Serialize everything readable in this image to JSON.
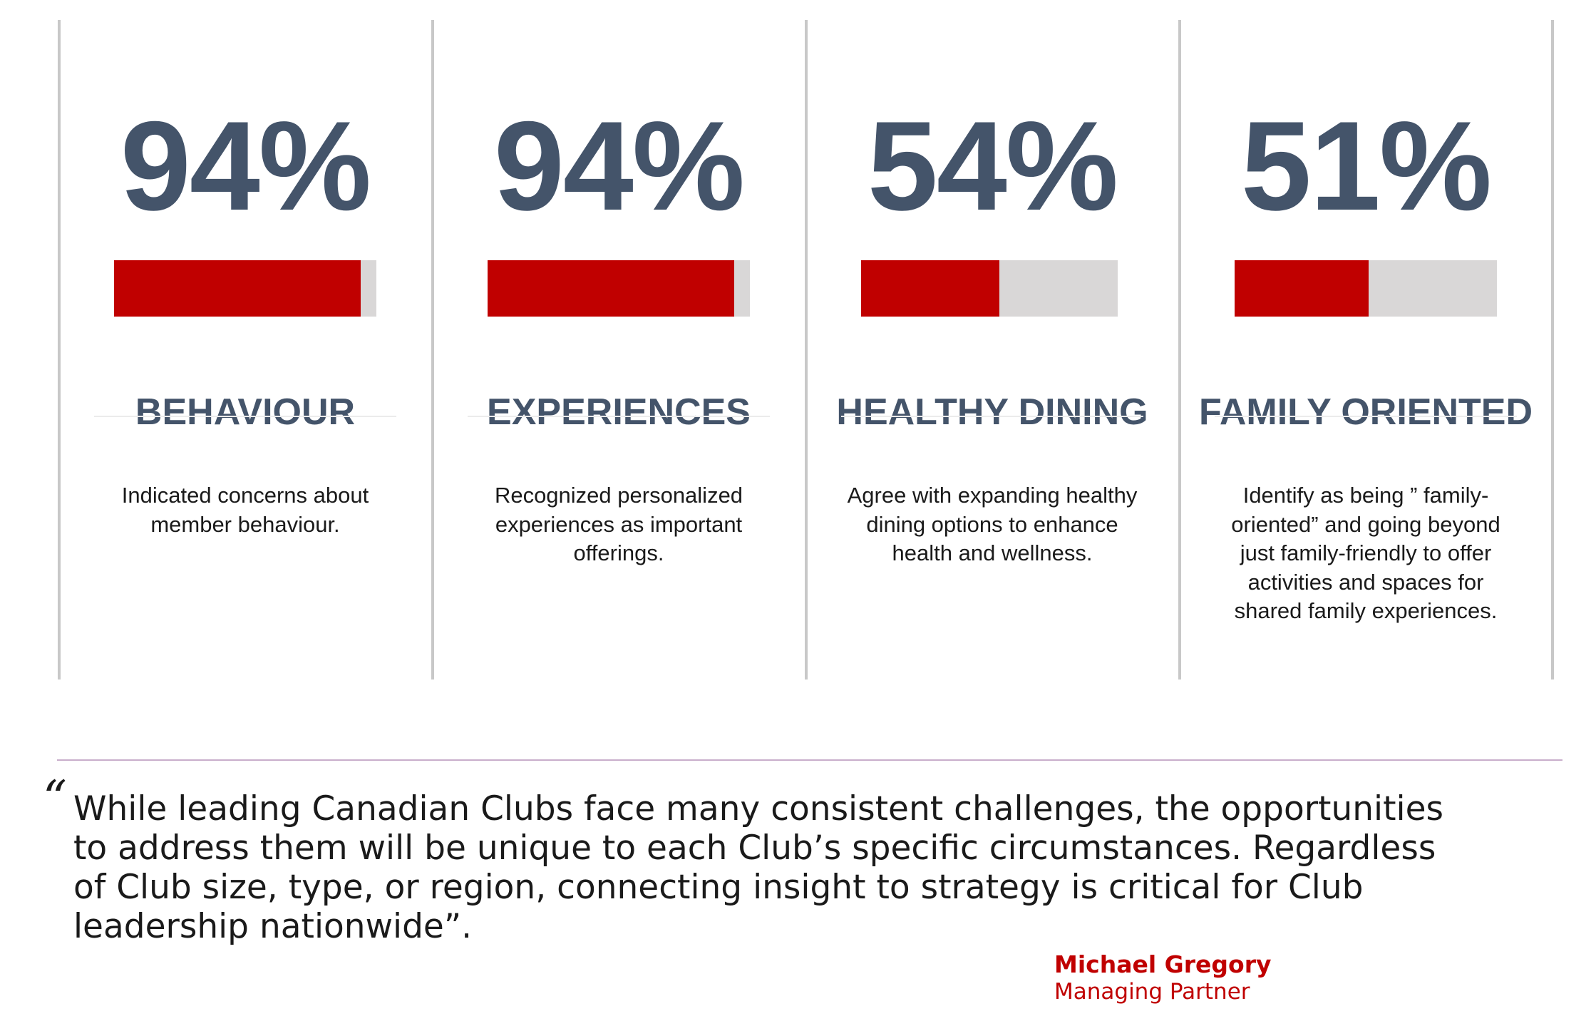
{
  "stats": [
    {
      "value": "94%",
      "fraction": 0.94,
      "category": "BEHAVIOUR",
      "description": "Indicated concerns about member behaviour."
    },
    {
      "value": "94%",
      "fraction": 0.94,
      "category": "EXPERIENCES",
      "description": "Recognized personalized experiences as important offerings."
    },
    {
      "value": "54%",
      "fraction": 0.54,
      "category": "HEALTHY DINING",
      "description": "Agree with expanding healthy dining options to enhance health and wellness."
    },
    {
      "value": "51%",
      "fraction": 0.51,
      "category": "FAMILY ORIENTED",
      "description": "Identify as being ” family-oriented” and going beyond just family-friendly to offer activities and spaces for shared family experiences."
    }
  ],
  "quote": {
    "mark": "“",
    "lines": [
      "While leading Canadian Clubs face many consistent challenges, the opportunities",
      "to address them will be unique to each Club’s specific circumstances.  Regardless",
      "of Club size, type, or region, connecting insight to strategy is critical for Club",
      "leadership nationwide”."
    ],
    "author": "Michael Gregory",
    "role": "Managing Partner"
  },
  "colors": {
    "accent": "#c00000",
    "heading": "#44546a",
    "track": "#d9d7d7",
    "divider": "#c8c8c8",
    "rule": "#c9aecb"
  }
}
